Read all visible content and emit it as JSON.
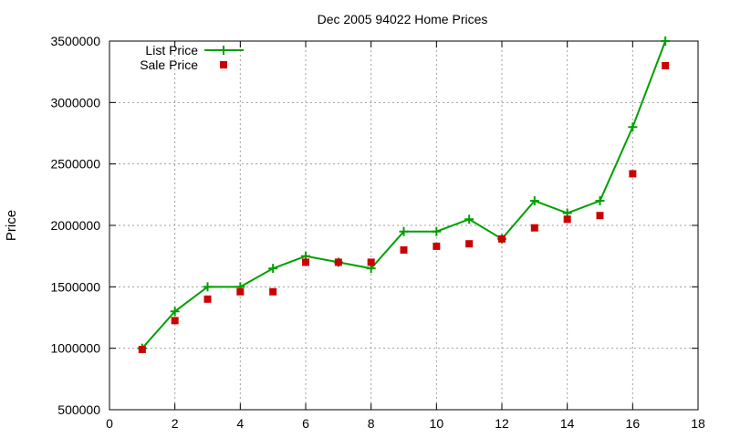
{
  "chart_data": {
    "type": "line",
    "title": "Dec 2005 94022 Home Prices",
    "xlabel": "",
    "ylabel": "Price",
    "xlim": [
      0,
      18
    ],
    "ylim": [
      500000,
      3500000
    ],
    "x_ticks": [
      "0",
      "2",
      "4",
      "6",
      "8",
      "10",
      "12",
      "14",
      "16",
      "18"
    ],
    "y_ticks": [
      "500000",
      "1000000",
      "1500000",
      "2000000",
      "2500000",
      "3000000",
      "3500000"
    ],
    "grid": true,
    "legend_position": "top-left",
    "series": [
      {
        "name": "List Price",
        "style": "line+cross",
        "color": "#00a000",
        "x": [
          1,
          2,
          3,
          4,
          5,
          6,
          7,
          8,
          9,
          10,
          11,
          12,
          13,
          14,
          15,
          16,
          17
        ],
        "values": [
          1000000,
          1300000,
          1500000,
          1500000,
          1650000,
          1750000,
          1700000,
          1650000,
          1950000,
          1950000,
          2050000,
          1890000,
          2200000,
          2100000,
          2200000,
          2800000,
          3500000
        ]
      },
      {
        "name": "Sale Price",
        "style": "square",
        "color": "#cc0000",
        "x": [
          1,
          2,
          3,
          4,
          5,
          6,
          7,
          8,
          9,
          10,
          11,
          12,
          13,
          14,
          15,
          16,
          17
        ],
        "values": [
          990000,
          1225000,
          1400000,
          1460000,
          1460000,
          1700000,
          1700000,
          1700000,
          1800000,
          1830000,
          1850000,
          1890000,
          1980000,
          2050000,
          2080000,
          2420000,
          3300000
        ]
      }
    ]
  }
}
